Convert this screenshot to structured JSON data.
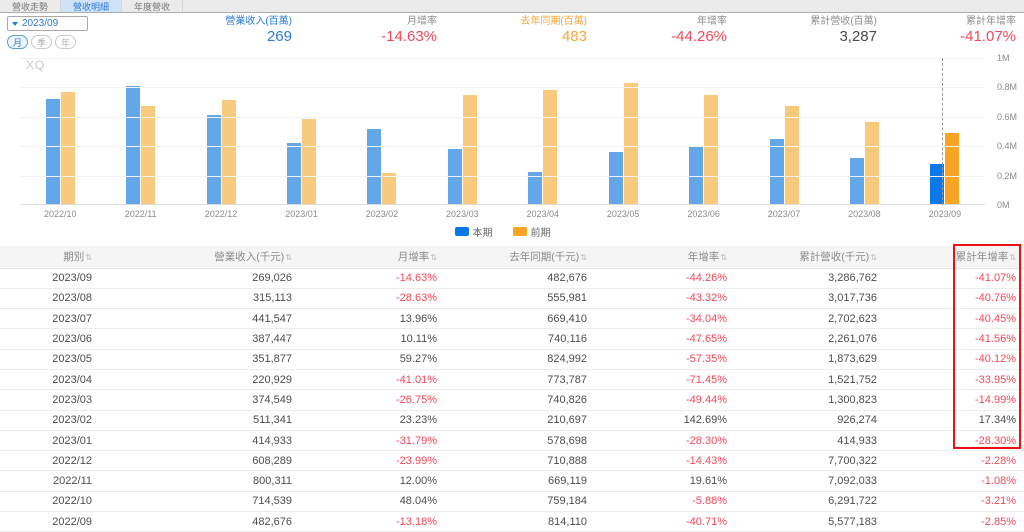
{
  "tabs": [
    {
      "label": "營收走勢",
      "active": false
    },
    {
      "label": "營收明細",
      "active": true
    },
    {
      "label": "年度營收",
      "active": false
    }
  ],
  "selector": {
    "value": "2023/09",
    "period_options": [
      "月",
      "季",
      "年"
    ],
    "active_period": "月"
  },
  "stats": [
    {
      "label": "營業收入(百萬)",
      "value": "269"
    },
    {
      "label": "月增率",
      "value": "-14.63%"
    },
    {
      "label": "去年同期(百萬)",
      "value": "483"
    },
    {
      "label": "年增率",
      "value": "-44.26%"
    },
    {
      "label": "累計營收(百萬)",
      "value": "3,287"
    },
    {
      "label": "累計年增率",
      "value": "-41.07%"
    }
  ],
  "chart_data": {
    "type": "bar",
    "watermark": "XQ",
    "categories": [
      "2022/10",
      "2022/11",
      "2022/12",
      "2023/01",
      "2023/02",
      "2023/03",
      "2023/04",
      "2023/05",
      "2023/06",
      "2023/07",
      "2023/08",
      "2023/09"
    ],
    "series": [
      {
        "name": "本期",
        "color": "#63a7e8",
        "highlight_color": "#0b79eb",
        "values": [
          714539,
          800311,
          608289,
          414933,
          511341,
          374549,
          220929,
          351877,
          387447,
          441547,
          315113,
          269026
        ]
      },
      {
        "name": "前期",
        "color": "#f9c97d",
        "highlight_color": "#f9a422",
        "values": [
          759184,
          669119,
          710888,
          578698,
          210697,
          740826,
          773787,
          824992,
          740116,
          669410,
          555981,
          482676
        ]
      }
    ],
    "ylim": [
      0,
      1000000
    ],
    "y_ticks": [
      "1M",
      "0.8M",
      "0.6M",
      "0.4M",
      "0.2M",
      "0M"
    ],
    "highlight_index": 11,
    "legend_position": "bottom-center",
    "grid": true
  },
  "table": {
    "headers": [
      "期別",
      "營業收入(千元)",
      "月增率",
      "去年同期(千元)",
      "年增率",
      "累計營收(千元)",
      "累計年增率"
    ],
    "sort_icon": "⇅",
    "percent_columns": [
      2,
      4,
      6
    ],
    "rows": [
      [
        "2023/09",
        "269,026",
        "-14.63%",
        "482,676",
        "-44.26%",
        "3,286,762",
        "-41.07%"
      ],
      [
        "2023/08",
        "315,113",
        "-28.63%",
        "555,981",
        "-43.32%",
        "3,017,736",
        "-40.76%"
      ],
      [
        "2023/07",
        "441,547",
        "13.96%",
        "669,410",
        "-34.04%",
        "2,702,623",
        "-40.45%"
      ],
      [
        "2023/06",
        "387,447",
        "10.11%",
        "740,116",
        "-47.65%",
        "2,261,076",
        "-41.56%"
      ],
      [
        "2023/05",
        "351,877",
        "59.27%",
        "824,992",
        "-57.35%",
        "1,873,629",
        "-40.12%"
      ],
      [
        "2023/04",
        "220,929",
        "-41.01%",
        "773,787",
        "-71.45%",
        "1,521,752",
        "-33.95%"
      ],
      [
        "2023/03",
        "374,549",
        "-26.75%",
        "740,826",
        "-49.44%",
        "1,300,823",
        "-14.99%"
      ],
      [
        "2023/02",
        "511,341",
        "23.23%",
        "210,697",
        "142.69%",
        "926,274",
        "17.34%"
      ],
      [
        "2023/01",
        "414,933",
        "-31.79%",
        "578,698",
        "-28.30%",
        "414,933",
        "-28.30%"
      ],
      [
        "2022/12",
        "608,289",
        "-23.99%",
        "710,888",
        "-14.43%",
        "7,700,322",
        "-2.28%"
      ],
      [
        "2022/11",
        "800,311",
        "12.00%",
        "669,119",
        "19.61%",
        "7,092,033",
        "-1.08%"
      ],
      [
        "2022/10",
        "714,539",
        "48.04%",
        "759,184",
        "-5.88%",
        "6,291,722",
        "-3.21%"
      ],
      [
        "2022/09",
        "482,676",
        "-13.18%",
        "814,110",
        "-40.71%",
        "5,577,183",
        "-2.85%"
      ]
    ]
  },
  "colors": {
    "accent_blue": "#2b7ad7",
    "negative_red": "#f4495a",
    "orange": "#f6a63c",
    "highlight_box_red": "#ec1111"
  }
}
